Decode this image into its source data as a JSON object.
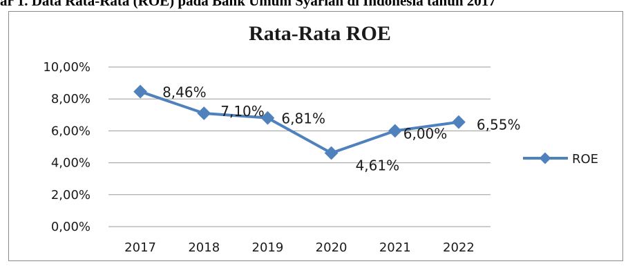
{
  "caption": "ar 1. Data Rata-Rata (ROE) pada Bank Umum Syariah di Indonesia tahun 2017",
  "chart_data": {
    "type": "line",
    "title": "Rata-Rata ROE",
    "categories": [
      "2017",
      "2018",
      "2019",
      "2020",
      "2021",
      "2022"
    ],
    "series": [
      {
        "name": "ROE",
        "values": [
          8.46,
          7.1,
          6.81,
          4.61,
          6.0,
          6.55
        ],
        "labels": [
          "8,46%",
          "7,10%",
          "6,81%",
          "4,61%",
          "6,00%",
          "6,55%"
        ],
        "color": "#4f81bd"
      }
    ],
    "y_ticks": [
      "0,00%",
      "2,00%",
      "4,00%",
      "6,00%",
      "8,00%",
      "10,00%"
    ],
    "ylim": [
      0,
      10
    ],
    "grid": true,
    "legend": "right"
  }
}
